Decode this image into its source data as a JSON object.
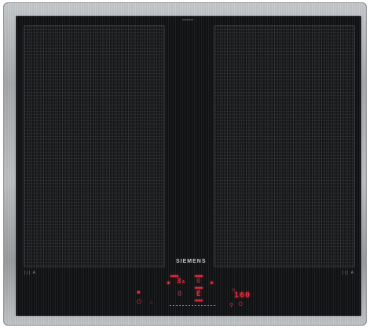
{
  "brand": "SIEMENS",
  "display": {
    "top_left_level": "3",
    "top_left_sub": "A",
    "top_right_level": "0",
    "bottom_left_level": "0",
    "bottom_right_level": "E",
    "timer_value": "160"
  },
  "zones": {
    "left_mark": "|||  A",
    "right_mark": "|||  A"
  },
  "icons": [
    "power-icon",
    "lock-icon",
    "timer-icon",
    "clock-icon",
    "fry-sensor-icon"
  ]
}
